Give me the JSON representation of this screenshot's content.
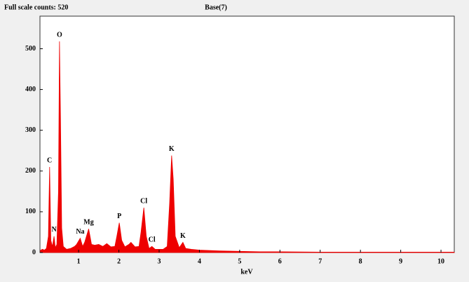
{
  "chart_data": {
    "type": "area",
    "title": "Full scale counts: 520",
    "subtitle": "Base(7)",
    "x_label": "keV",
    "color": "#ee0000",
    "x": [
      0.05,
      0.1,
      0.15,
      0.2,
      0.25,
      0.28,
      0.31,
      0.35,
      0.39,
      0.42,
      0.46,
      0.5,
      0.525,
      0.55,
      0.58,
      0.62,
      0.7,
      0.8,
      0.9,
      0.95,
      1.04,
      1.1,
      1.15,
      1.25,
      1.32,
      1.4,
      1.5,
      1.6,
      1.7,
      1.8,
      1.9,
      1.95,
      2.01,
      2.07,
      2.15,
      2.25,
      2.3,
      2.4,
      2.5,
      2.55,
      2.62,
      2.68,
      2.75,
      2.82,
      2.9,
      3.0,
      3.1,
      3.2,
      3.26,
      3.31,
      3.35,
      3.4,
      3.5,
      3.59,
      3.66,
      3.8,
      4.0,
      4.5,
      5.0,
      5.5,
      6.0,
      7.0,
      8.0,
      9.0,
      10.0,
      10.33
    ],
    "values": [
      5,
      8,
      6,
      10,
      40,
      210,
      30,
      15,
      40,
      12,
      20,
      150,
      518,
      330,
      60,
      15,
      8,
      10,
      15,
      20,
      35,
      15,
      25,
      58,
      20,
      18,
      20,
      15,
      22,
      14,
      15,
      40,
      73,
      30,
      14,
      20,
      25,
      14,
      15,
      50,
      110,
      40,
      10,
      15,
      8,
      8,
      8,
      15,
      120,
      238,
      180,
      40,
      12,
      25,
      10,
      8,
      6,
      4,
      3,
      2,
      2,
      1,
      1,
      1,
      1,
      1
    ],
    "annotations": [
      {
        "text": "C",
        "x": 0.277,
        "y": 210
      },
      {
        "text": "O",
        "x": 0.525,
        "y": 518
      },
      {
        "text": "N",
        "x": 0.39,
        "y": 40
      },
      {
        "text": "Na",
        "x": 1.04,
        "y": 35
      },
      {
        "text": "Mg",
        "x": 1.25,
        "y": 58
      },
      {
        "text": "P",
        "x": 2.01,
        "y": 73
      },
      {
        "text": "Cl",
        "x": 2.62,
        "y": 110
      },
      {
        "text": "Cl",
        "x": 2.82,
        "y": 15
      },
      {
        "text": "K",
        "x": 3.31,
        "y": 238
      },
      {
        "text": "K",
        "x": 3.59,
        "y": 25
      }
    ],
    "xlim": [
      0.04,
      10.33
    ],
    "ylim": [
      0,
      580
    ],
    "xticks": [
      1,
      2,
      3,
      4,
      5,
      6,
      7,
      8,
      9,
      10
    ],
    "yticks": [
      0,
      100,
      200,
      300,
      400,
      500
    ]
  }
}
